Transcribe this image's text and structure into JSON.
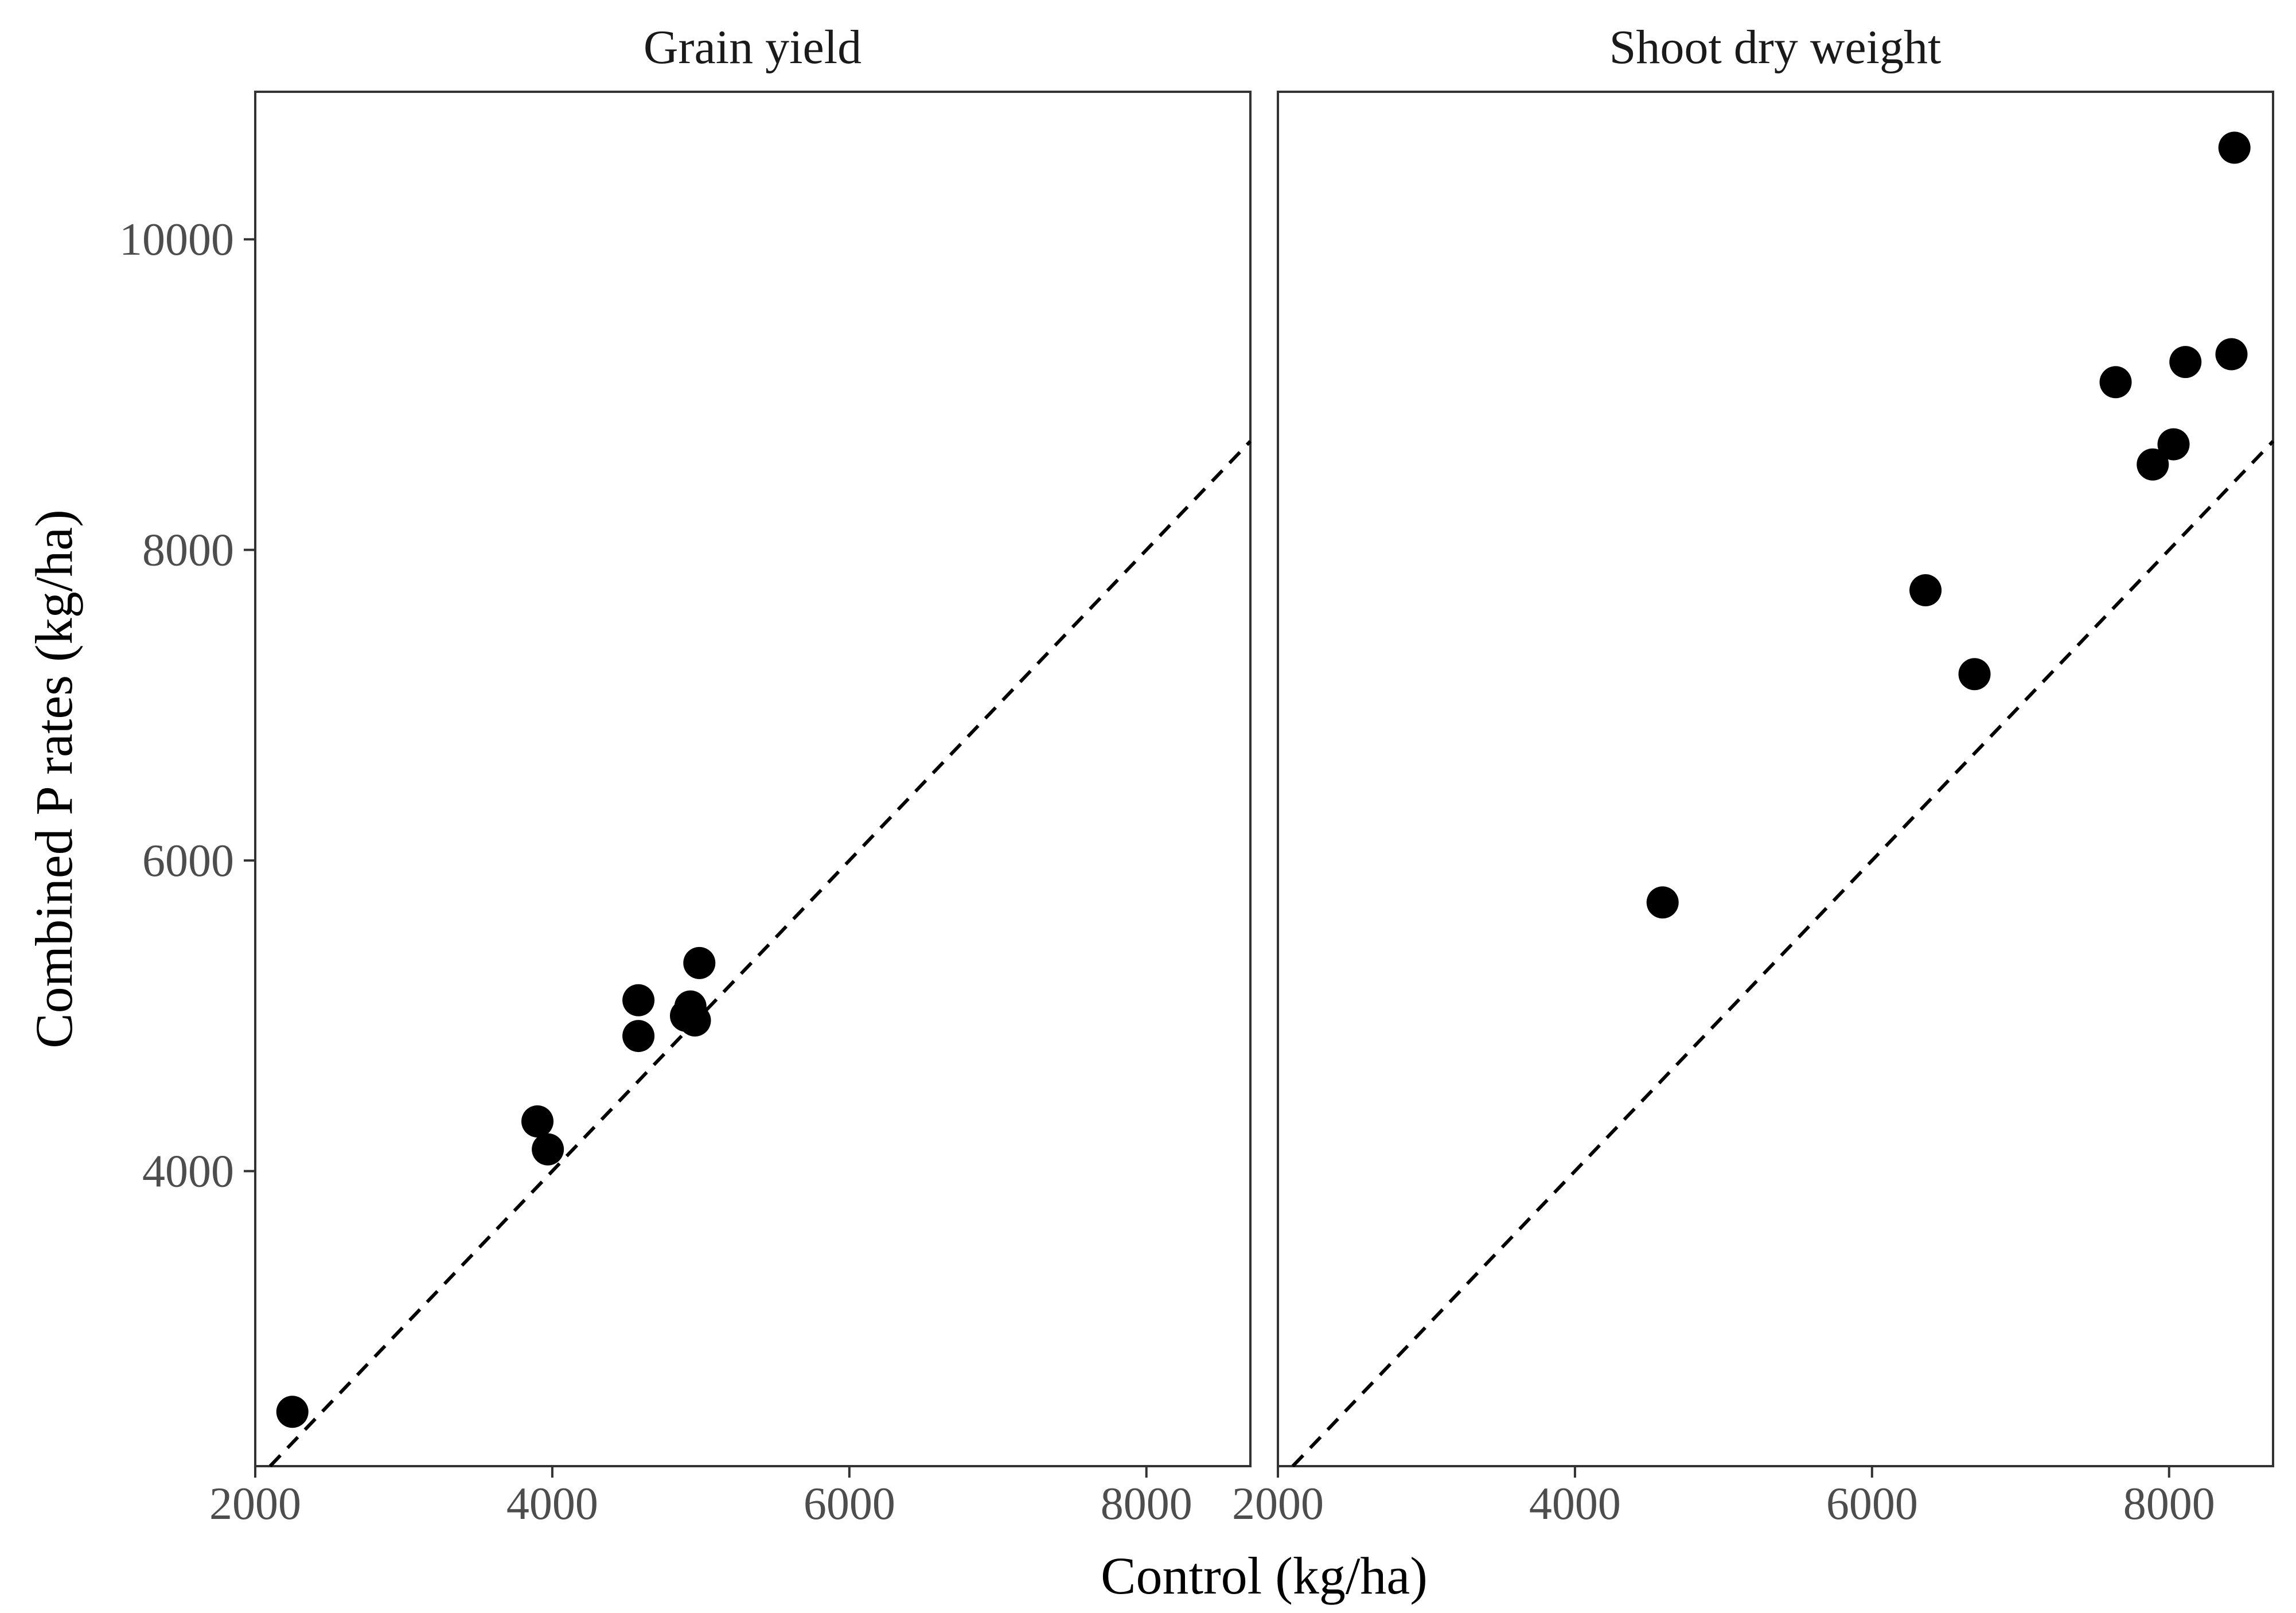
{
  "chart_data": {
    "type": "scatter",
    "xlabel": "Control (kg/ha)",
    "ylabel": "Combined P rates (kg/ha)",
    "xlim": [
      2000,
      8700
    ],
    "ylim": [
      2100,
      10950
    ],
    "xticks": [
      2000,
      4000,
      6000,
      8000
    ],
    "yticks": [
      4000,
      6000,
      8000,
      10000
    ],
    "xtick_labels": [
      "2000",
      "4000",
      "6000",
      "8000"
    ],
    "ytick_labels": [
      "4000",
      "6000",
      "8000",
      "10000"
    ],
    "reference_line": {
      "type": "y=x",
      "style": "dashed"
    },
    "grid": false,
    "panels": [
      {
        "title": "Grain yield",
        "points": [
          {
            "x": 2250,
            "y": 2450
          },
          {
            "x": 3900,
            "y": 4320
          },
          {
            "x": 3970,
            "y": 4140
          },
          {
            "x": 4580,
            "y": 5100
          },
          {
            "x": 4580,
            "y": 4870
          },
          {
            "x": 4900,
            "y": 5000
          },
          {
            "x": 4930,
            "y": 5060
          },
          {
            "x": 4960,
            "y": 4970
          },
          {
            "x": 4990,
            "y": 5340
          }
        ]
      },
      {
        "title": "Shoot dry weight",
        "points": [
          {
            "x": 4590,
            "y": 5730
          },
          {
            "x": 6360,
            "y": 7740
          },
          {
            "x": 6690,
            "y": 7200
          },
          {
            "x": 7640,
            "y": 9080
          },
          {
            "x": 7890,
            "y": 8550
          },
          {
            "x": 8030,
            "y": 8680
          },
          {
            "x": 8110,
            "y": 9210
          },
          {
            "x": 8420,
            "y": 9260
          },
          {
            "x": 8440,
            "y": 10590
          }
        ]
      }
    ]
  }
}
